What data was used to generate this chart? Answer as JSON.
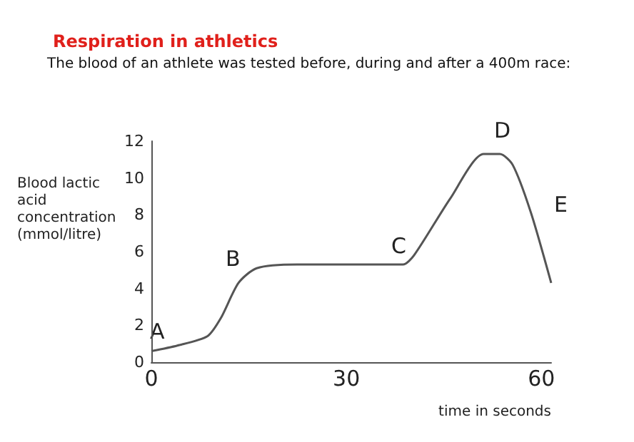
{
  "chart_data": {
    "type": "line",
    "title": "Respiration in athletics",
    "subtitle": "The blood of an athlete was tested before, during and after a 400m race:",
    "xlabel": "time in seconds",
    "ylabel": "Blood lactic\nacid\nconcentration\n(mmol/litre)",
    "x": [
      0,
      4,
      8.6,
      10.7,
      13.4,
      16.2,
      22.4,
      30,
      38.7,
      40.4,
      46,
      51.1,
      53.6,
      55.6,
      58.4,
      61.5
    ],
    "series": [
      {
        "color": "#555555",
        "values": [
          0.6,
          0.9,
          1.4,
          2.4,
          4.3,
          5.1,
          5.3,
          5.3,
          5.3,
          5.8,
          8.9,
          11.3,
          11.3,
          10.7,
          8.1,
          4.3
        ]
      }
    ],
    "xlim": [
      0,
      61.5
    ],
    "xticks": [
      0,
      30,
      60
    ],
    "ylim": [
      0,
      12
    ],
    "yticks": [
      0,
      2,
      4,
      6,
      8,
      10,
      12
    ],
    "grid": false,
    "marker": "none",
    "line_style": "solid",
    "annotations": [
      "A",
      "B",
      "C",
      "D",
      "E"
    ]
  }
}
